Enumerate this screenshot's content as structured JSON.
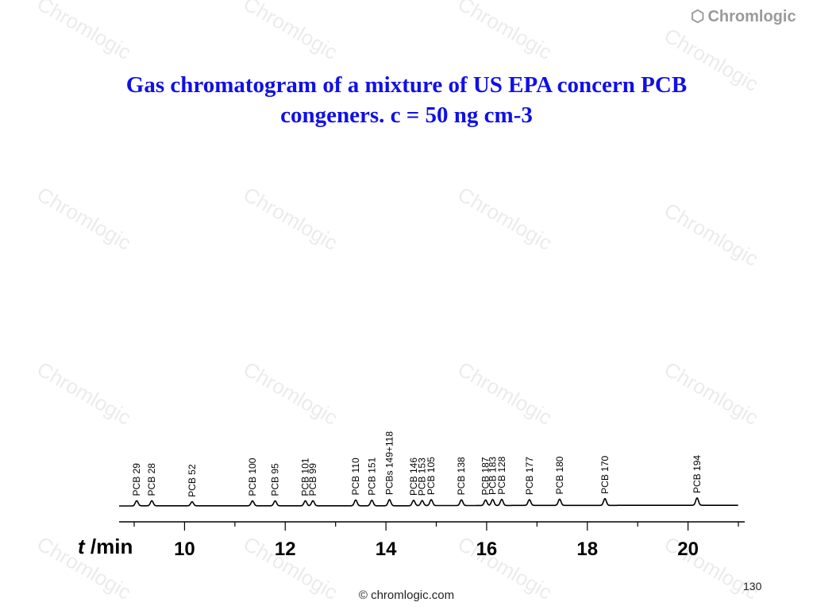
{
  "title_line1": "Gas chromatogram of a mixture of US EPA concern PCB",
  "title_line2": "congeners. c = 50 ng cm-3",
  "logo_text": "Chromlogic",
  "watermark_text": "Chromlogic",
  "footer_text": "© chromlogic.com",
  "page_number": "130",
  "chart_data": {
    "type": "line",
    "title": "Gas chromatogram of a mixture of US EPA concern PCB congeners. c = 50 ng cm-3",
    "xlabel": "t /min",
    "ylabel": "",
    "xlim": [
      8.7,
      21.0
    ],
    "ylim": [
      0,
      100
    ],
    "xticks": [
      10,
      12,
      14,
      16,
      18,
      20
    ],
    "grid": false,
    "line_color": "#000000",
    "peaks": [
      {
        "label": "PCB 29",
        "t": 9.05,
        "height": 87
      },
      {
        "label": "PCB 28",
        "t": 9.35,
        "height": 87
      },
      {
        "label": "PCB 52",
        "t": 10.15,
        "height": 68
      },
      {
        "label": "PCB 100",
        "t": 11.35,
        "height": 84
      },
      {
        "label": "PCB 95",
        "t": 11.8,
        "height": 84
      },
      {
        "label": "PCB 101",
        "t": 12.4,
        "height": 85
      },
      {
        "label": "PCB 99",
        "t": 12.55,
        "height": 87
      },
      {
        "label": "PCB 110",
        "t": 13.4,
        "height": 100
      },
      {
        "label": "PCB 151",
        "t": 13.72,
        "height": 96
      },
      {
        "label": "PCBs 149+118",
        "t": 14.07,
        "height": 105
      },
      {
        "label": "PCB 146",
        "t": 14.55,
        "height": 90
      },
      {
        "label": "PCB 153",
        "t": 14.72,
        "height": 86
      },
      {
        "label": "PCB 105",
        "t": 14.9,
        "height": 102
      },
      {
        "label": "PCB 138",
        "t": 15.5,
        "height": 98
      },
      {
        "label": "PCB 187",
        "t": 15.98,
        "height": 95
      },
      {
        "label": "PCB 183",
        "t": 16.12,
        "height": 102
      },
      {
        "label": "PCB 128",
        "t": 16.3,
        "height": 105
      },
      {
        "label": "PCB 177",
        "t": 16.85,
        "height": 98
      },
      {
        "label": "PCB 180",
        "t": 17.45,
        "height": 106
      },
      {
        "label": "PCB 170",
        "t": 18.35,
        "height": 116
      },
      {
        "label": "PCB 194",
        "t": 20.18,
        "height": 126
      }
    ]
  }
}
